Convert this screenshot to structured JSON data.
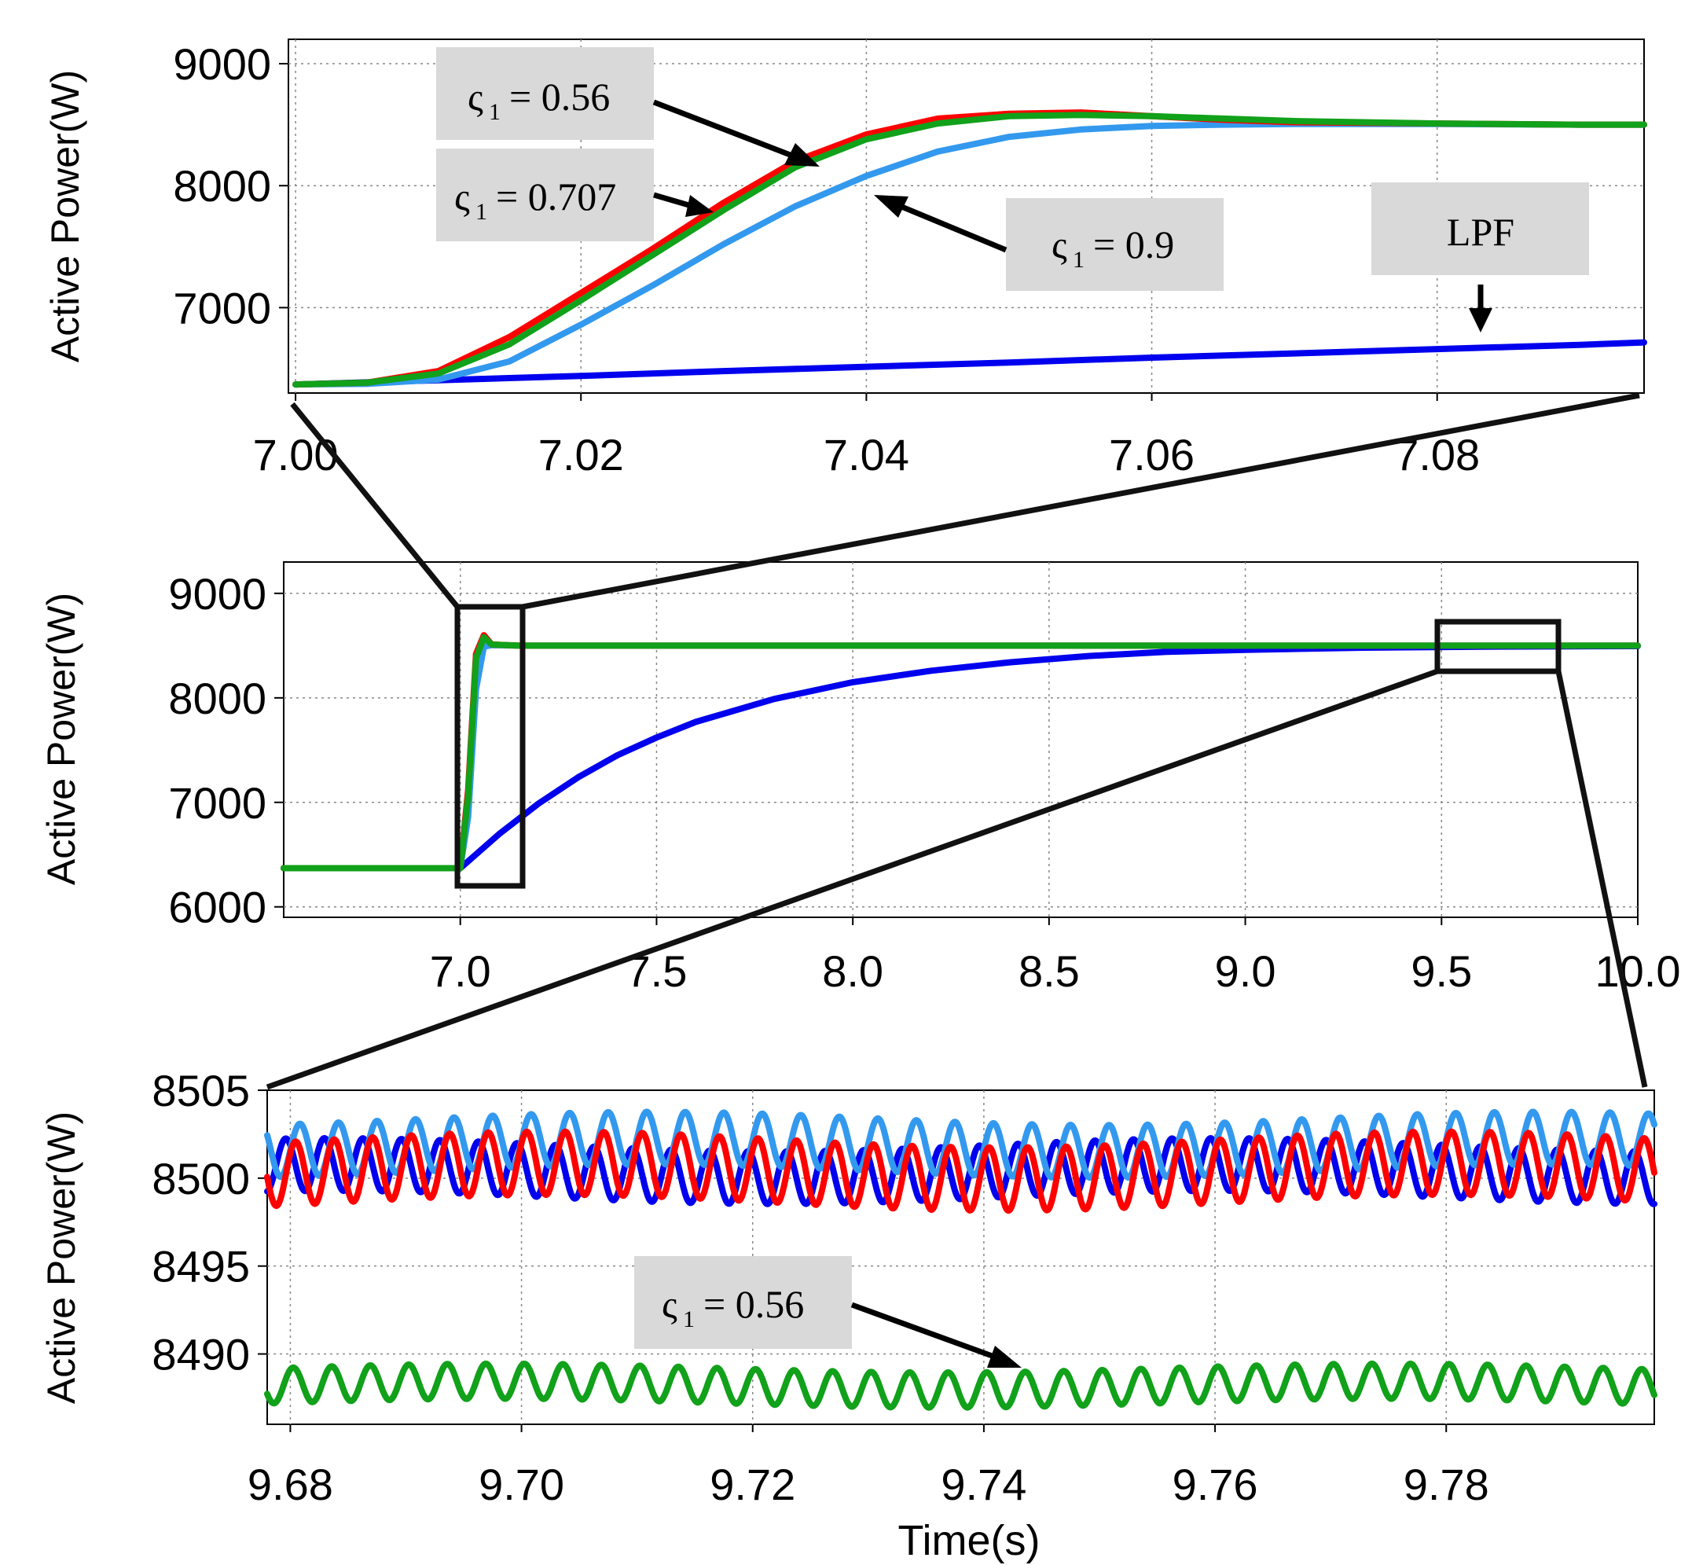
{
  "colors": {
    "zeta_056": "#ff0000",
    "zeta_0707": "#11a11a",
    "zeta_09": "#3399ee",
    "lpf": "#0000ee",
    "grid": "#888888",
    "annotation_box": "#d9d9d9",
    "zoom_box": "#111111"
  },
  "chart_data": [
    {
      "type": "line",
      "panel": "top",
      "ylabel": "Active Power(W)",
      "xlabel": "",
      "xlim": [
        6.9995,
        7.0945
      ],
      "ylim": [
        6300,
        9200
      ],
      "x_ticks": [
        7.0,
        7.02,
        7.04,
        7.06,
        7.08
      ],
      "x_tick_labels": [
        "7.00",
        "7.02",
        "7.04",
        "7.06",
        "7.08"
      ],
      "y_ticks": [
        7000,
        8000,
        9000
      ],
      "y_tick_labels": [
        "7000",
        "8000",
        "9000"
      ],
      "grid": true,
      "series": [
        {
          "key": "zeta_056",
          "x": [
            7.0,
            7.005,
            7.01,
            7.015,
            7.02,
            7.025,
            7.03,
            7.035,
            7.04,
            7.045,
            7.05,
            7.055,
            7.06,
            7.065,
            7.07,
            7.08,
            7.09,
            7.095
          ],
          "y": [
            6370,
            6385,
            6480,
            6760,
            7120,
            7480,
            7860,
            8200,
            8420,
            8550,
            8590,
            8600,
            8570,
            8540,
            8520,
            8510,
            8500,
            8500
          ]
        },
        {
          "key": "zeta_0707",
          "x": [
            7.0,
            7.005,
            7.01,
            7.015,
            7.02,
            7.025,
            7.03,
            7.035,
            7.04,
            7.045,
            7.05,
            7.055,
            7.06,
            7.065,
            7.07,
            7.08,
            7.09,
            7.095
          ],
          "y": [
            6370,
            6385,
            6460,
            6700,
            7060,
            7430,
            7800,
            8150,
            8380,
            8510,
            8570,
            8580,
            8570,
            8550,
            8530,
            8510,
            8500,
            8500
          ]
        },
        {
          "key": "zeta_09",
          "x": [
            7.0,
            7.005,
            7.01,
            7.015,
            7.02,
            7.025,
            7.03,
            7.035,
            7.04,
            7.045,
            7.05,
            7.055,
            7.06,
            7.065,
            7.07,
            7.08,
            7.09,
            7.095
          ],
          "y": [
            6370,
            6375,
            6410,
            6560,
            6860,
            7180,
            7520,
            7830,
            8080,
            8280,
            8400,
            8460,
            8490,
            8500,
            8505,
            8505,
            8500,
            8500
          ]
        },
        {
          "key": "lpf",
          "x": [
            7.0,
            7.01,
            7.02,
            7.03,
            7.04,
            7.05,
            7.06,
            7.07,
            7.08,
            7.09,
            7.095
          ],
          "y": [
            6370,
            6405,
            6440,
            6480,
            6515,
            6550,
            6590,
            6625,
            6660,
            6695,
            6715
          ]
        }
      ],
      "annotations": [
        "ς1 = 0.56",
        "ς1 = 0.707",
        "ς1 = 0.9",
        "LPF"
      ]
    },
    {
      "type": "line",
      "panel": "middle",
      "ylabel": "Active Power(W)",
      "xlabel": "",
      "xlim": [
        6.55,
        10.0
      ],
      "ylim": [
        5900,
        9300
      ],
      "x_ticks": [
        7.0,
        7.5,
        8.0,
        8.5,
        9.0,
        9.5,
        10.0
      ],
      "x_tick_labels": [
        "7.0",
        "7.5",
        "8.0",
        "8.5",
        "9.0",
        "9.5",
        "10.0"
      ],
      "y_ticks": [
        6000,
        7000,
        8000,
        9000
      ],
      "y_tick_labels": [
        "6000",
        "7000",
        "8000",
        "9000"
      ],
      "grid": true,
      "series": [
        {
          "key": "zeta_056",
          "x": [
            6.55,
            7.0,
            7.02,
            7.04,
            7.06,
            7.08,
            7.15,
            10.0
          ],
          "y": [
            6370,
            6370,
            7120,
            8420,
            8600,
            8510,
            8500,
            8500
          ]
        },
        {
          "key": "zeta_0707",
          "x": [
            6.55,
            7.0,
            7.02,
            7.04,
            7.06,
            7.08,
            7.15,
            10.0
          ],
          "y": [
            6370,
            6370,
            7060,
            8380,
            8580,
            8510,
            8500,
            8500
          ]
        },
        {
          "key": "zeta_09",
          "x": [
            6.55,
            7.0,
            7.02,
            7.04,
            7.06,
            7.08,
            7.15,
            10.0
          ],
          "y": [
            6370,
            6370,
            6860,
            8080,
            8490,
            8505,
            8500,
            8500
          ]
        },
        {
          "key": "lpf",
          "x": [
            6.55,
            7.0,
            7.1,
            7.2,
            7.3,
            7.4,
            7.5,
            7.6,
            7.8,
            8.0,
            8.2,
            8.4,
            8.6,
            8.8,
            9.0,
            9.3,
            9.6,
            10.0
          ],
          "y": [
            6370,
            6370,
            6700,
            6990,
            7240,
            7450,
            7620,
            7770,
            7990,
            8150,
            8260,
            8340,
            8400,
            8440,
            8460,
            8480,
            8490,
            8495
          ]
        }
      ]
    },
    {
      "type": "line",
      "panel": "bottom",
      "ylabel": "Active Power(W)",
      "xlabel": "Time(s)",
      "xlim": [
        9.678,
        9.798
      ],
      "ylim": [
        8486,
        8505
      ],
      "x_ticks": [
        9.68,
        9.7,
        9.72,
        9.74,
        9.76,
        9.78
      ],
      "x_tick_labels": [
        "9.68",
        "9.70",
        "9.72",
        "9.74",
        "9.76",
        "9.78"
      ],
      "y_ticks": [
        8490,
        8495,
        8500,
        8505
      ],
      "y_tick_labels": [
        "8490",
        "8495",
        "8500",
        "8505"
      ],
      "grid": true,
      "series": [
        {
          "key": "zeta_09",
          "mean": 8501.9,
          "amplitude": 1.5,
          "frequency_hz": 300,
          "phase": 0.0
        },
        {
          "key": "zeta_056",
          "mean": 8500.4,
          "amplitude": 1.8,
          "frequency_hz": 300,
          "phase": 0.7
        },
        {
          "key": "lpf",
          "mean": 8500.4,
          "amplitude": 1.5,
          "frequency_hz": 300,
          "phase": 2.3
        },
        {
          "key": "zeta_0707",
          "mean": 8488.2,
          "amplitude": 1.0,
          "frequency_hz": 300,
          "phase": 1.1
        }
      ],
      "annotations": [
        "ς1 = 0.56"
      ]
    }
  ],
  "labels": {
    "top_ylabel": "Active Power(W)",
    "mid_ylabel": "Active Power(W)",
    "bot_ylabel": "Active Power(W)",
    "bot_xlabel": "Time(s)",
    "ann_top_1_sym": "ς",
    "ann_top_1_sub": "1",
    "ann_top_1_val": "= 0.56",
    "ann_top_2_sym": "ς",
    "ann_top_2_sub": "1",
    "ann_top_2_val": "= 0.707",
    "ann_top_3_sym": "ς",
    "ann_top_3_sub": "1",
    "ann_top_3_val": "= 0.9",
    "ann_top_4": "LPF",
    "ann_bot_1_sym": "ς",
    "ann_bot_1_sub": "1",
    "ann_bot_1_val": "= 0.56"
  }
}
